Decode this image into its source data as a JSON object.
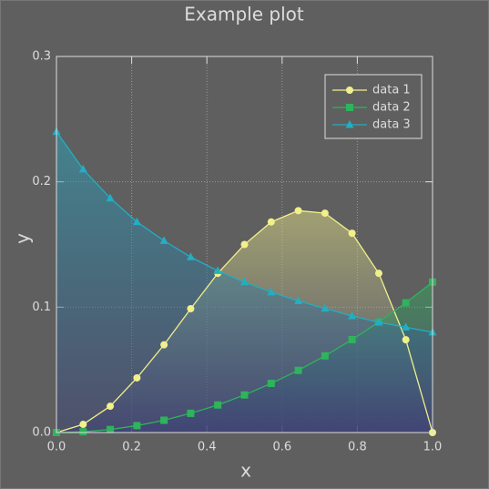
{
  "chart_data": {
    "type": "line",
    "title": "Example plot",
    "x_label": "x",
    "y_label": "y",
    "x": [
      0,
      0.071,
      0.143,
      0.214,
      0.286,
      0.357,
      0.429,
      0.5,
      0.571,
      0.643,
      0.714,
      0.786,
      0.857,
      0.929,
      1
    ],
    "series": [
      {
        "name": "data 1",
        "color": "#f2f08a",
        "marker": "circle",
        "values": [
          0,
          0.0065,
          0.021,
          0.0436,
          0.07,
          0.0988,
          0.127,
          0.15,
          0.168,
          0.177,
          0.175,
          0.159,
          0.127,
          0.074,
          0
        ]
      },
      {
        "name": "data 2",
        "color": "#2fb35c",
        "marker": "square",
        "values": [
          0,
          0.0006,
          0.0024,
          0.0055,
          0.0098,
          0.0153,
          0.022,
          0.03,
          0.0392,
          0.0496,
          0.0612,
          0.0741,
          0.0882,
          0.1035,
          0.12
        ]
      },
      {
        "name": "data 3",
        "color": "#22aec4",
        "marker": "triangle",
        "values": [
          0.24,
          0.21,
          0.187,
          0.168,
          0.153,
          0.14,
          0.129,
          0.12,
          0.112,
          0.105,
          0.099,
          0.093,
          0.088,
          0.084,
          0.08
        ]
      }
    ],
    "xlim": [
      0,
      1
    ],
    "xticks": [
      {
        "value": 0,
        "label": "0.0"
      },
      0.2,
      0.4,
      0.6,
      0.8,
      {
        "value": 1,
        "label": "1.0"
      }
    ],
    "ylim": [
      0,
      0.3
    ],
    "yticks": [
      {
        "value": 0,
        "label": "0.0"
      },
      0.1,
      0.2,
      0.3
    ],
    "grid": true,
    "legend": "upper right",
    "fill": true
  }
}
